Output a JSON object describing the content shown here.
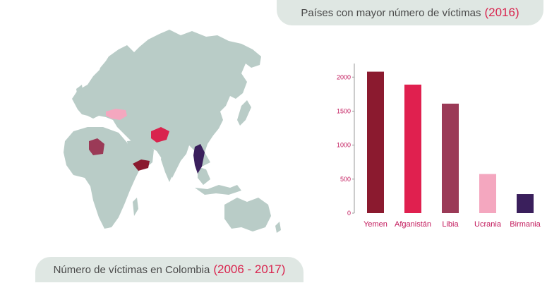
{
  "header": {
    "title_text": "Países con mayor número de víctimas",
    "title_year": "(2016)"
  },
  "footer": {
    "title_text": "Número de víctimas  en Colombia",
    "title_years": "(2006 - 2017)"
  },
  "map": {
    "land_color": "#b9ccc7",
    "highlighted": [
      {
        "country": "Libia",
        "color": "#9b3a57"
      },
      {
        "country": "Ucrania",
        "color": "#f4a7bf"
      },
      {
        "country": "Afganistán",
        "color": "#d9244e"
      },
      {
        "country": "Yemen",
        "color": "#8b1a2f"
      },
      {
        "country": "Birmania",
        "color": "#3a1f5c"
      }
    ]
  },
  "chart_data": {
    "type": "bar",
    "categories": [
      "Yemen",
      "Afganistán",
      "Libia",
      "Ucrania",
      "Birmania"
    ],
    "values": [
      2080,
      1890,
      1610,
      575,
      280
    ],
    "colors": [
      "#8b1a2f",
      "#e0204f",
      "#9b3a57",
      "#f4a7bf",
      "#3a1f5c"
    ],
    "ylim": [
      0,
      2200
    ],
    "yticks": [
      0,
      500,
      1000,
      1500,
      2000
    ],
    "grid": false
  }
}
